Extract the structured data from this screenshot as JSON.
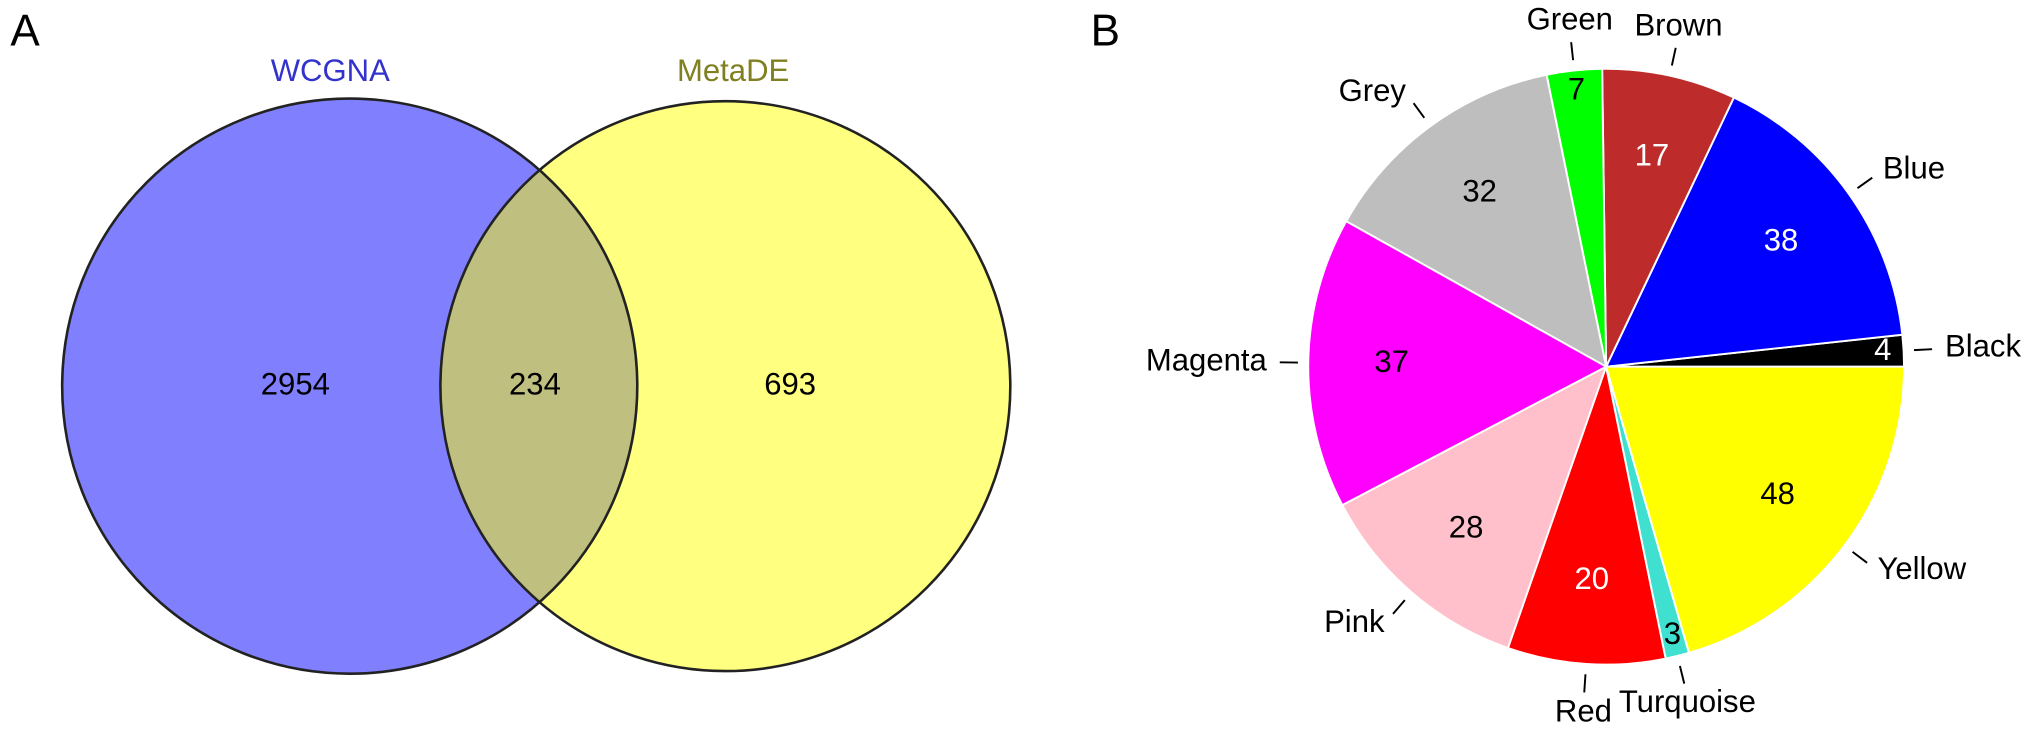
{
  "chart_data": [
    {
      "type": "venn",
      "panel": "A",
      "sets": [
        {
          "name": "WCGNA",
          "color": "#8080ff",
          "label_color": "#3333cc",
          "value": 2954
        },
        {
          "name": "MetaDE",
          "color": "#ffff80",
          "label_color": "#808020",
          "value": 693
        }
      ],
      "intersection": {
        "value": 234,
        "color": "#bfbf80"
      }
    },
    {
      "type": "pie",
      "panel": "B",
      "categories": [
        "Black",
        "Blue",
        "Brown",
        "Green",
        "Grey",
        "Magenta",
        "Pink",
        "Red",
        "Turquoise",
        "Yellow"
      ],
      "values": [
        4,
        38,
        17,
        7,
        32,
        37,
        28,
        20,
        3,
        48
      ],
      "colors": [
        "#000000",
        "#0000ff",
        "#be2b2b",
        "#00ff00",
        "#bebebe",
        "#ff00ff",
        "#ffc0cb",
        "#ff0000",
        "#40e0d0",
        "#ffff00"
      ]
    }
  ]
}
